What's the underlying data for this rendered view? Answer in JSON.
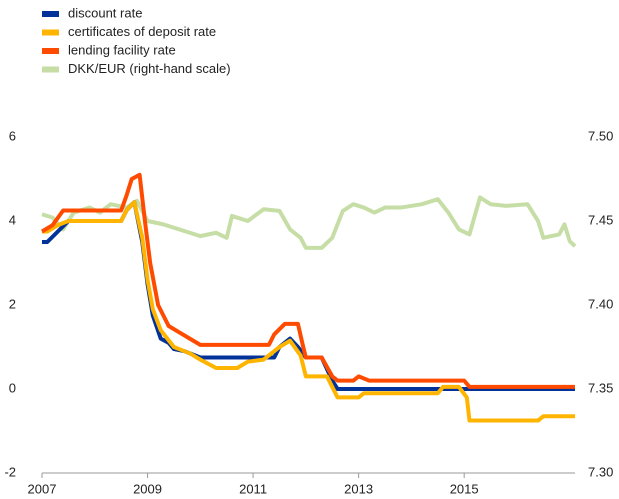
{
  "chart_data": {
    "type": "line",
    "xlim": [
      2007,
      2017.1
    ],
    "xticks": [
      2007,
      2009,
      2011,
      2013,
      2015
    ],
    "ylim": [
      -2,
      6
    ],
    "yticks": [
      -2,
      0,
      2,
      4,
      6
    ],
    "y2lim": [
      7.3,
      7.5
    ],
    "y2ticks": [
      {
        "value": 7.3,
        "label": "7.30"
      },
      {
        "value": 7.35,
        "label": "7.35"
      },
      {
        "value": 7.4,
        "label": "7.40"
      },
      {
        "value": 7.45,
        "label": "7.45"
      },
      {
        "value": 7.5,
        "label": "7.50"
      }
    ],
    "legend": "top-left",
    "series": [
      {
        "name": "discount rate",
        "color": "#003299",
        "x": [
          2007,
          2007.1,
          2007.3,
          2007.5,
          2008.5,
          2008.6,
          2008.75,
          2008.9,
          2009.0,
          2009.1,
          2009.25,
          2009.4,
          2009.5,
          2009.7,
          2010.0,
          2011.4,
          2011.5,
          2011.7,
          2011.85,
          2012.0,
          2012.3,
          2012.5,
          2012.6,
          2017.1
        ],
        "values": [
          3.5,
          3.5,
          3.75,
          4.0,
          4.0,
          4.25,
          4.45,
          3.5,
          2.5,
          1.75,
          1.2,
          1.1,
          0.95,
          0.9,
          0.75,
          0.75,
          1.0,
          1.2,
          1.0,
          0.75,
          0.75,
          0.2,
          0,
          0
        ]
      },
      {
        "name": "certificates of deposit rate",
        "color": "#ffb400",
        "x": [
          2007,
          2007.1,
          2007.3,
          2007.5,
          2008.5,
          2008.6,
          2008.75,
          2008.9,
          2009.0,
          2009.1,
          2009.25,
          2009.5,
          2009.8,
          2010.0,
          2010.3,
          2010.7,
          2010.9,
          2011.2,
          2011.5,
          2011.7,
          2011.9,
          2012.0,
          2012.4,
          2012.6,
          2013.0,
          2013.1,
          2014.5,
          2014.6,
          2014.9,
          2015.05,
          2015.1,
          2016.4,
          2016.5,
          2017.1
        ],
        "values": [
          3.75,
          3.75,
          3.9,
          4.0,
          4.0,
          4.25,
          4.45,
          3.6,
          2.6,
          1.9,
          1.4,
          1.0,
          0.85,
          0.7,
          0.5,
          0.5,
          0.65,
          0.7,
          1.0,
          1.15,
          0.8,
          0.3,
          0.3,
          -0.2,
          -0.2,
          -0.1,
          -0.1,
          0.05,
          0.05,
          -0.2,
          -0.75,
          -0.75,
          -0.65,
          -0.65
        ]
      },
      {
        "name": "lending facility rate",
        "color": "#ff4b00",
        "x": [
          2007,
          2007.2,
          2007.4,
          2008.5,
          2008.6,
          2008.7,
          2008.85,
          2008.95,
          2009.05,
          2009.2,
          2009.4,
          2009.6,
          2009.8,
          2010.0,
          2011.3,
          2011.4,
          2011.6,
          2011.85,
          2011.95,
          2012.0,
          2012.3,
          2012.5,
          2012.6,
          2012.9,
          2013.0,
          2013.2,
          2015.0,
          2015.1,
          2017.1
        ],
        "values": [
          3.75,
          3.9,
          4.25,
          4.25,
          4.6,
          5.0,
          5.1,
          4.0,
          3.0,
          2.0,
          1.5,
          1.35,
          1.2,
          1.05,
          1.05,
          1.3,
          1.55,
          1.55,
          1.0,
          0.75,
          0.75,
          0.3,
          0.2,
          0.2,
          0.3,
          0.2,
          0.2,
          0.05,
          0.05
        ]
      },
      {
        "name": "DKK/EUR (right-hand scale)",
        "color": "#c6dea6",
        "axis": "y2",
        "x": [
          2007,
          2007.2,
          2007.4,
          2007.6,
          2007.9,
          2008.1,
          2008.3,
          2008.6,
          2008.8,
          2009.0,
          2009.3,
          2009.6,
          2010.0,
          2010.3,
          2010.5,
          2010.6,
          2010.9,
          2011.2,
          2011.5,
          2011.7,
          2011.9,
          2012.0,
          2012.3,
          2012.5,
          2012.7,
          2012.9,
          2013.1,
          2013.3,
          2013.5,
          2013.8,
          2014.2,
          2014.5,
          2014.7,
          2014.9,
          2015.1,
          2015.3,
          2015.5,
          2015.8,
          2016.2,
          2016.4,
          2016.5,
          2016.8,
          2016.9,
          2017.0,
          2017.1
        ],
        "values": [
          7.454,
          7.452,
          7.445,
          7.455,
          7.458,
          7.455,
          7.46,
          7.458,
          7.462,
          7.45,
          7.448,
          7.445,
          7.441,
          7.443,
          7.44,
          7.453,
          7.45,
          7.457,
          7.456,
          7.445,
          7.44,
          7.434,
          7.434,
          7.44,
          7.456,
          7.46,
          7.458,
          7.455,
          7.458,
          7.458,
          7.46,
          7.463,
          7.455,
          7.445,
          7.442,
          7.464,
          7.46,
          7.459,
          7.46,
          7.45,
          7.44,
          7.442,
          7.448,
          7.438,
          7.435
        ]
      }
    ]
  }
}
